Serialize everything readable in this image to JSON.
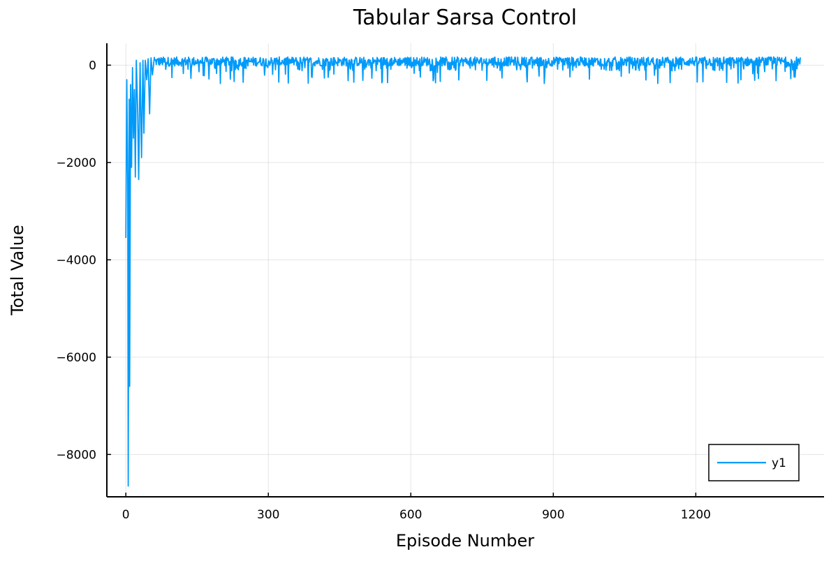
{
  "chart_data": {
    "type": "line",
    "title": "Tabular Sarsa Control",
    "xlabel": "Episode Number",
    "ylabel": "Total Value",
    "xlim": [
      -40,
      1470
    ],
    "ylim": [
      -8870,
      450
    ],
    "xticks": [
      0,
      300,
      600,
      900,
      1200
    ],
    "xtick_labels": [
      "0",
      "300",
      "600",
      "900",
      "1200"
    ],
    "yticks": [
      0,
      -2000,
      -4000,
      -6000,
      -8000
    ],
    "ytick_labels": [
      "0",
      "−2000",
      "−4000",
      "−6000",
      "−8000"
    ],
    "grid": true,
    "legend_position": "bottom-right",
    "series": [
      {
        "name": "y1",
        "color": "#009AFA",
        "episodes": 1420,
        "key_points": [
          {
            "x": 0,
            "y": -3550
          },
          {
            "x": 2,
            "y": -300
          },
          {
            "x": 4,
            "y": -2400
          },
          {
            "x": 5,
            "y": -8650
          },
          {
            "x": 7,
            "y": -700
          },
          {
            "x": 8,
            "y": -6600
          },
          {
            "x": 10,
            "y": -400
          },
          {
            "x": 12,
            "y": -2100
          },
          {
            "x": 14,
            "y": -50
          },
          {
            "x": 16,
            "y": -1500
          },
          {
            "x": 18,
            "y": -500
          },
          {
            "x": 20,
            "y": -2300
          },
          {
            "x": 22,
            "y": 100
          },
          {
            "x": 25,
            "y": -1000
          },
          {
            "x": 27,
            "y": -2350
          },
          {
            "x": 30,
            "y": 50
          },
          {
            "x": 33,
            "y": -1900
          },
          {
            "x": 36,
            "y": 100
          },
          {
            "x": 38,
            "y": -1400
          },
          {
            "x": 41,
            "y": 100
          },
          {
            "x": 44,
            "y": -300
          },
          {
            "x": 47,
            "y": 130
          },
          {
            "x": 50,
            "y": -1000
          },
          {
            "x": 53,
            "y": 150
          },
          {
            "x": 56,
            "y": -200
          },
          {
            "x": 60,
            "y": 160
          }
        ],
        "steady_state": {
          "from_x": 60,
          "to_x": 1420,
          "max": 170,
          "typical_min": -20,
          "dip_min": -380
        }
      }
    ]
  }
}
